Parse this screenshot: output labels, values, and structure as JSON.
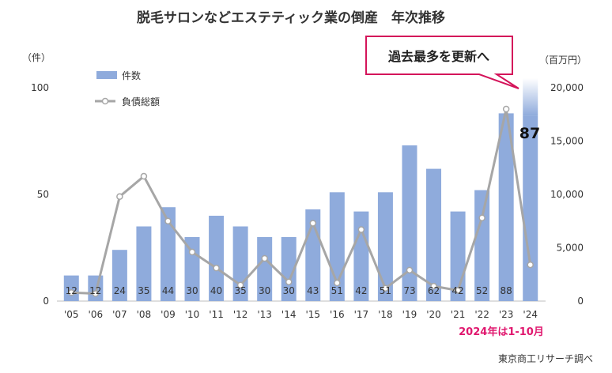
{
  "title": "脱毛サロンなどエステティック業の倒産　年次推移",
  "left_unit": "（件）",
  "right_unit": "（百万円）",
  "legend": {
    "bar_label": "件数",
    "line_label": "負債総額"
  },
  "callout": "過去最多を更新へ",
  "highlight_value": "87",
  "footnote": "2024年は1-10月",
  "source": "東京商工リサーチ調べ",
  "colors": {
    "bar": "#8fabdc",
    "line": "#a6a6a6",
    "callout_border": "#d4145a",
    "note": "#e0176e"
  },
  "chart_data": {
    "type": "bar+line",
    "categories": [
      "'05",
      "'06",
      "'07",
      "'08",
      "'09",
      "'10",
      "'11",
      "'12",
      "'13",
      "'14",
      "'15",
      "'16",
      "'17",
      "'18",
      "'19",
      "'20",
      "'21",
      "'22",
      "'23",
      "'24"
    ],
    "series": [
      {
        "name": "件数",
        "type": "bar",
        "axis": "left",
        "values": [
          12,
          12,
          24,
          35,
          44,
          30,
          40,
          35,
          30,
          30,
          43,
          51,
          42,
          51,
          73,
          62,
          42,
          52,
          88,
          87
        ],
        "labels": [
          "12",
          "12",
          "24",
          "35",
          "44",
          "30",
          "40",
          "35",
          "30",
          "30",
          "43",
          "51",
          "42",
          "51",
          "73",
          "62",
          "42",
          "52",
          "88",
          ""
        ]
      },
      {
        "name": "負債総額",
        "type": "line",
        "axis": "right",
        "values": [
          800,
          700,
          9800,
          11700,
          7500,
          4600,
          3100,
          1500,
          4000,
          1800,
          7300,
          1700,
          6700,
          1200,
          2900,
          1400,
          1000,
          7800,
          18000,
          3400
        ]
      }
    ],
    "y_left": {
      "min": 0,
      "max": 100,
      "ticks": [
        "0",
        "50",
        "100"
      ]
    },
    "y_right": {
      "min": 0,
      "max": 20000,
      "ticks": [
        "0",
        "5,000",
        "10,000",
        "15,000",
        "20,000"
      ]
    },
    "grid": false,
    "legend_position": "top-left"
  }
}
